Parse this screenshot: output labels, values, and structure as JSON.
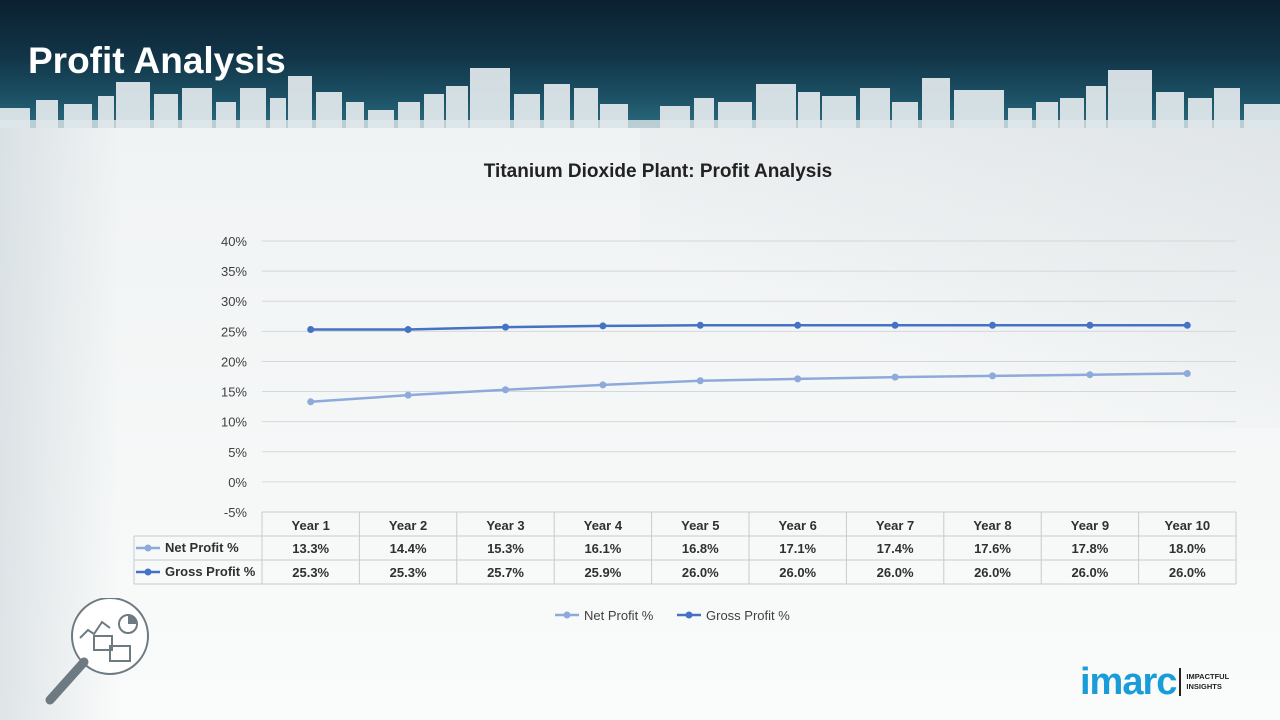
{
  "header": {
    "title": "Profit Analysis"
  },
  "chart_data": {
    "type": "line",
    "title": "Titanium Dioxide Plant: Profit Analysis",
    "categories": [
      "Year 1",
      "Year 2",
      "Year 3",
      "Year 4",
      "Year 5",
      "Year 6",
      "Year 7",
      "Year 8",
      "Year 9",
      "Year 10"
    ],
    "series": [
      {
        "name": "Net Profit %",
        "color": "#8eaadb",
        "values": [
          13.3,
          14.4,
          15.3,
          16.1,
          16.8,
          17.1,
          17.4,
          17.6,
          17.8,
          18.0
        ],
        "labels": [
          "13.3%",
          "14.4%",
          "15.3%",
          "16.1%",
          "16.8%",
          "17.1%",
          "17.4%",
          "17.6%",
          "17.8%",
          "18.0%"
        ]
      },
      {
        "name": "Gross Profit %",
        "color": "#4472c4",
        "values": [
          25.3,
          25.3,
          25.7,
          25.9,
          26.0,
          26.0,
          26.0,
          26.0,
          26.0,
          26.0
        ],
        "labels": [
          "25.3%",
          "25.3%",
          "25.7%",
          "25.9%",
          "26.0%",
          "26.0%",
          "26.0%",
          "26.0%",
          "26.0%",
          "26.0%"
        ]
      }
    ],
    "ylim": [
      -5,
      40
    ],
    "yticks": [
      40,
      35,
      30,
      25,
      20,
      15,
      10,
      5,
      0,
      -5
    ],
    "ytick_labels": [
      "40%",
      "35%",
      "30%",
      "25%",
      "20%",
      "15%",
      "10%",
      "5%",
      "0%",
      "-5%"
    ],
    "grid": true,
    "legend": "bottom",
    "data_table": true
  },
  "logo": {
    "word": "imarc",
    "tagline_1": "IMPACTFUL",
    "tagline_2": "INSIGHTS"
  },
  "icons": {
    "illustration": "magnifier-analytics-icon"
  }
}
